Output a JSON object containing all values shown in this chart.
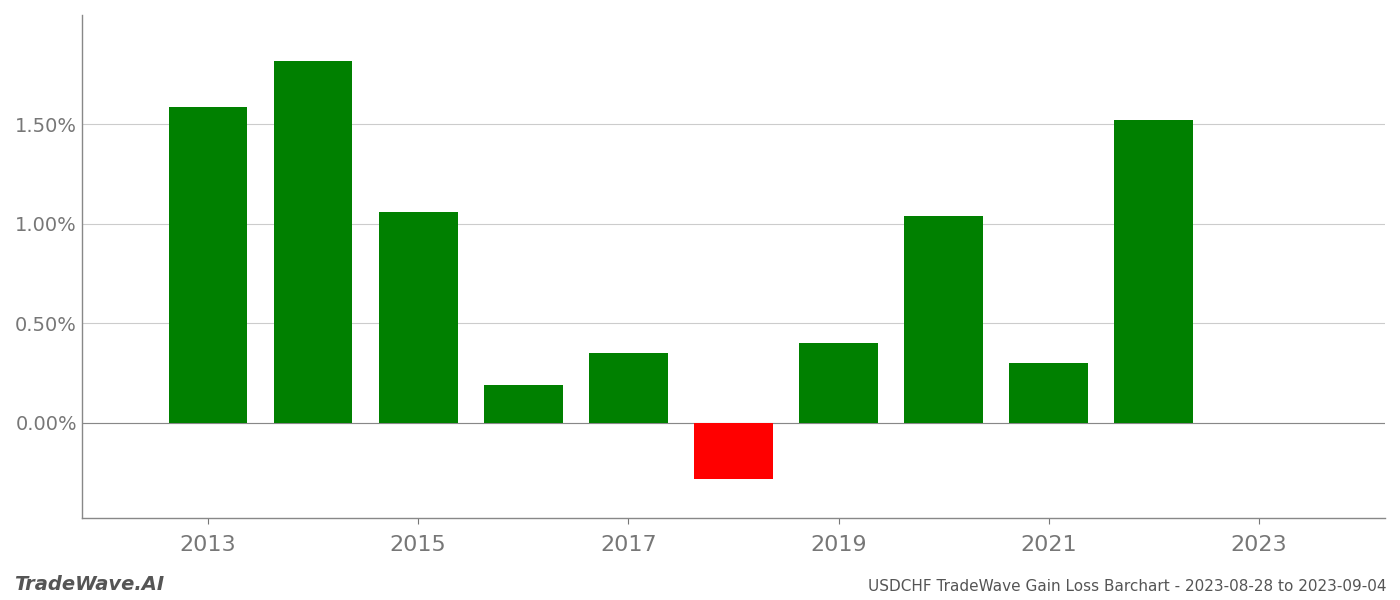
{
  "years": [
    2013,
    2014,
    2015,
    2016,
    2017,
    2018,
    2019,
    2020,
    2021,
    2022
  ],
  "values": [
    1.59,
    1.82,
    1.06,
    0.19,
    0.35,
    -0.28,
    0.4,
    1.04,
    0.3,
    1.52
  ],
  "colors": [
    "#008000",
    "#008000",
    "#008000",
    "#008000",
    "#008000",
    "#ff0000",
    "#008000",
    "#008000",
    "#008000",
    "#008000"
  ],
  "footer_left": "TradeWave.AI",
  "footer_right": "USDCHF TradeWave Gain Loss Barchart - 2023-08-28 to 2023-09-04",
  "ylim_min": -0.48,
  "ylim_max": 2.05,
  "xlim_min": 2011.8,
  "xlim_max": 2024.2,
  "background_color": "#ffffff",
  "grid_color": "#cccccc",
  "bar_width": 0.75,
  "xticks": [
    2013,
    2015,
    2017,
    2019,
    2021,
    2023
  ],
  "yticks": [
    0.0,
    0.5,
    1.0,
    1.5
  ],
  "left_spine_color": "#888888",
  "bottom_spine_color": "#888888"
}
